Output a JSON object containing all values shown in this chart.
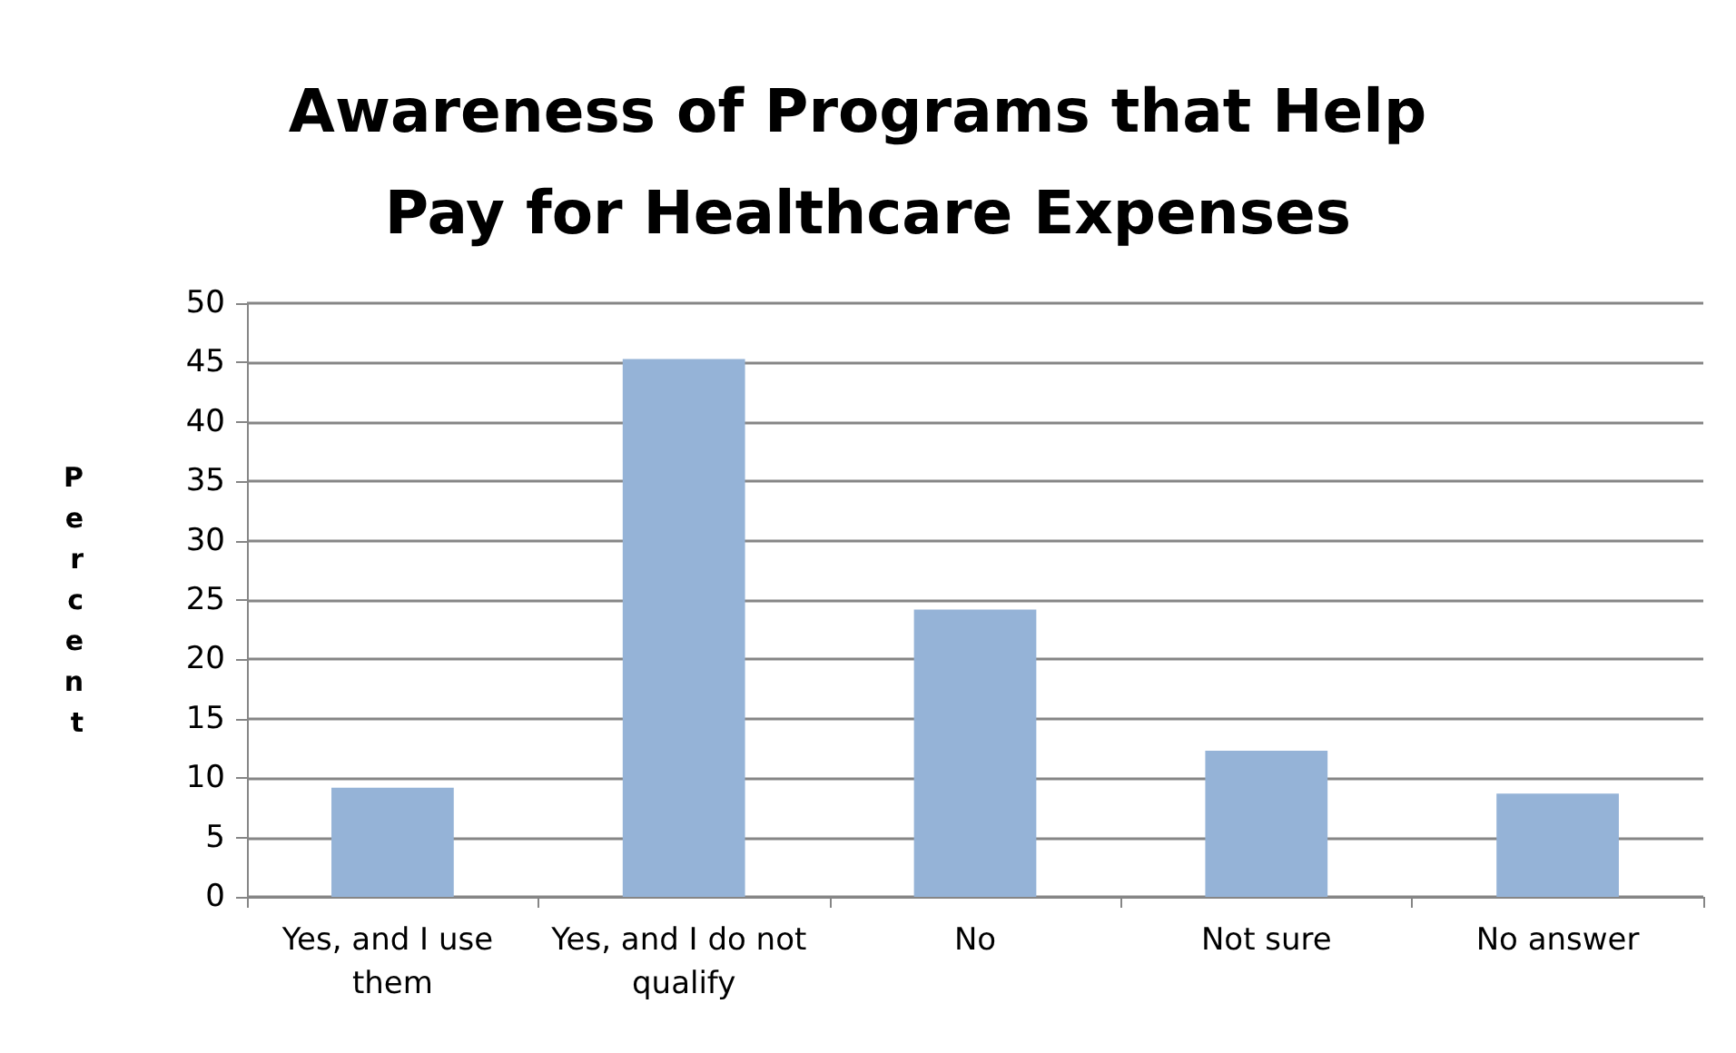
{
  "chart_data": {
    "type": "bar",
    "title": "Awareness of Programs that Help Pay for Healthcare Expenses",
    "ylabel": "Percent",
    "categories": [
      "Yes, and I use them",
      "Yes, and I do not qualify",
      "No",
      "Not sure",
      "No answer"
    ],
    "values": [
      9.2,
      45.3,
      24.2,
      12.3,
      8.7
    ],
    "color": "#95b3d7",
    "ylim": [
      0,
      50
    ],
    "yticks": [
      0,
      5,
      10,
      15,
      20,
      25,
      30,
      35,
      40,
      45,
      50
    ],
    "grid": "y"
  }
}
